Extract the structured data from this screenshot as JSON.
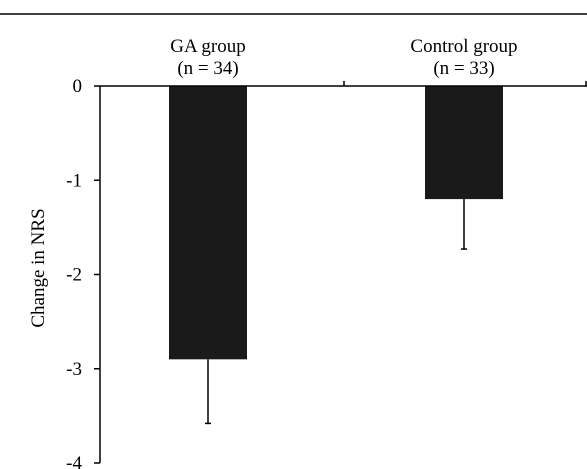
{
  "chart_data": {
    "type": "bar",
    "categories": [
      "GA group",
      "Control group"
    ],
    "category_sublabels": [
      "(n = 34)",
      "(n = 33)"
    ],
    "values": [
      -2.9,
      -1.2
    ],
    "error_bars": [
      0.68,
      0.53
    ],
    "ylabel": "Change in NRS",
    "ylim": [
      -4,
      0
    ],
    "yticks": [
      0,
      -1,
      -2,
      -3,
      -4
    ],
    "ytick_labels": [
      "0",
      "-1",
      "-2",
      "-3",
      "-4"
    ],
    "bar_color": "#1a1a1a",
    "grid": false,
    "legend": "none"
  }
}
